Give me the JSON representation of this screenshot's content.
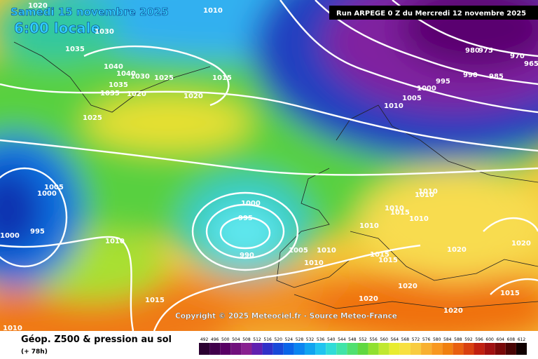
{
  "header": {
    "date": "Samedi 15 novembre 2025",
    "time": "6:00 locale",
    "run": "Run ARPEGE 0 Z du Mercredi 12 novembre 2025"
  },
  "copyright": "Copyright © 2025 Meteociel.fr - Source Meteo-France",
  "footer": {
    "title": "Géop. Z500 & pression au sol",
    "lead": "(+ 78h)"
  },
  "legend": {
    "values": [
      492,
      496,
      500,
      504,
      508,
      512,
      516,
      520,
      524,
      528,
      532,
      536,
      540,
      544,
      548,
      552,
      556,
      560,
      564,
      568,
      572,
      576,
      580,
      584,
      588,
      592,
      596,
      600,
      604,
      608,
      612
    ],
    "colors": [
      "#2a0030",
      "#40004a",
      "#580064",
      "#70107c",
      "#882090",
      "#6020b0",
      "#3030c8",
      "#1848d8",
      "#0a64e8",
      "#0a84f0",
      "#10a4f0",
      "#20c4f0",
      "#30dcd8",
      "#40e4a8",
      "#50e070",
      "#60d840",
      "#90e030",
      "#c0e830",
      "#e8ec30",
      "#f8e040",
      "#f8cc40",
      "#f8b030",
      "#f89820",
      "#f08010",
      "#e86010",
      "#d84010",
      "#c02010",
      "#a01010",
      "#780808",
      "#480404",
      "#100000"
    ]
  },
  "isobar_labels": [
    1020,
    1010,
    1030,
    1035,
    1040,
    1040,
    1030,
    1025,
    1035,
    1035,
    1020,
    1015,
    1020,
    1025,
    1005,
    1000,
    995,
    1000,
    1010,
    1000,
    995,
    990,
    1005,
    1010,
    1010,
    1015,
    1010,
    1020,
    1020,
    1020,
    1015,
    1015,
    1010,
    1010,
    1015,
    1010,
    1010,
    1010,
    1020,
    1020,
    1015,
    1010,
    1005,
    1000,
    995,
    990,
    985,
    980,
    975,
    970,
    965
  ]
}
